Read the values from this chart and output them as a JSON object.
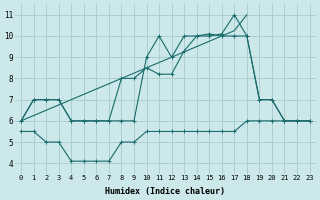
{
  "xlabel": "Humidex (Indice chaleur)",
  "bg_color": "#cce8ea",
  "grid_color": "#aacfcf",
  "line_color": "#1a6b6b",
  "xlim": [
    -0.5,
    23.5
  ],
  "ylim": [
    3.5,
    11.5
  ],
  "xticks": [
    0,
    1,
    2,
    3,
    4,
    5,
    6,
    7,
    8,
    9,
    10,
    11,
    12,
    13,
    14,
    15,
    16,
    17,
    18,
    19,
    20,
    21,
    22,
    23
  ],
  "yticks": [
    4,
    5,
    6,
    7,
    8,
    9,
    10,
    11
  ],
  "line_upper_x": [
    0,
    1,
    2,
    3,
    4,
    5,
    6,
    7,
    8,
    9,
    10,
    11,
    12,
    13,
    14,
    15,
    16,
    17,
    18,
    19,
    20,
    21,
    22,
    23
  ],
  "line_upper_y": [
    6,
    7,
    7,
    7,
    6,
    6,
    6,
    6,
    6,
    6,
    9,
    10,
    9,
    10,
    10,
    10,
    10.1,
    11,
    10,
    7,
    7,
    6,
    6,
    6
  ],
  "line_mid_x": [
    0,
    1,
    2,
    3,
    4,
    5,
    6,
    7,
    8,
    9,
    10,
    11,
    12,
    13,
    14,
    15,
    16,
    17,
    18,
    19,
    20,
    21,
    22,
    23
  ],
  "line_mid_y": [
    6,
    7,
    7,
    7,
    6,
    6,
    6,
    6,
    8,
    8,
    8.5,
    8.2,
    8.2,
    9.3,
    10,
    10.1,
    10,
    10,
    10,
    7,
    7,
    6,
    6,
    6
  ],
  "line_diag_x": [
    0,
    1,
    2,
    3,
    4,
    5,
    6,
    7,
    8,
    9,
    10,
    11,
    12,
    13,
    14,
    15,
    16,
    17,
    18
  ],
  "line_diag_y": [
    6,
    6.25,
    6.5,
    6.75,
    7,
    7.25,
    7.5,
    7.75,
    8,
    8.25,
    8.5,
    8.75,
    9,
    9.25,
    9.5,
    9.75,
    10,
    10.25,
    11
  ],
  "line_lower_x": [
    0,
    1,
    2,
    3,
    4,
    5,
    6,
    7,
    8,
    9,
    10,
    11,
    12,
    13,
    14,
    15,
    16,
    17,
    18,
    19,
    20,
    21,
    22,
    23
  ],
  "line_lower_y": [
    5.5,
    5.5,
    5,
    5,
    4.1,
    4.1,
    4.1,
    4.1,
    5,
    5,
    5.5,
    5.5,
    5.5,
    5.5,
    5.5,
    5.5,
    5.5,
    5.5,
    6,
    6,
    6,
    6,
    6,
    6
  ]
}
